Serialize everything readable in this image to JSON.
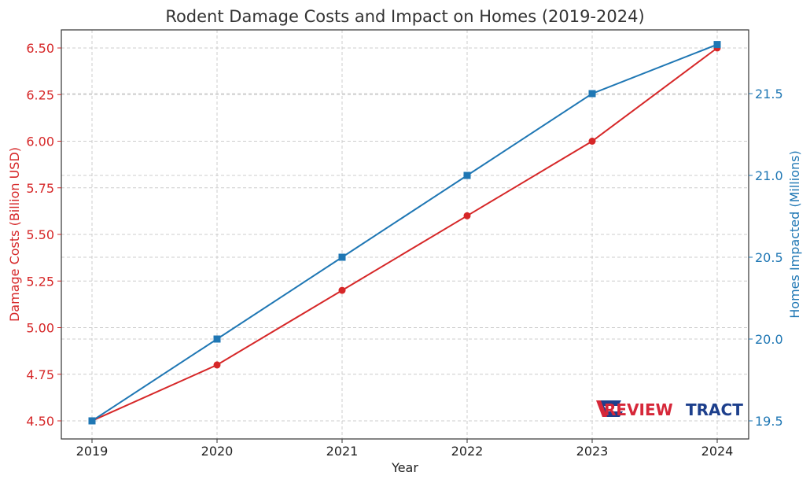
{
  "chart_data": {
    "type": "line",
    "title": "Rodent Damage Costs and Impact on Homes (2019-2024)",
    "xlabel": "Year",
    "categories": [
      "2019",
      "2020",
      "2021",
      "2022",
      "2023",
      "2024"
    ],
    "y_left": {
      "label": "Damage Costs (Billion USD)",
      "range": [
        4.5,
        6.5
      ],
      "ticks": [
        "4.50",
        "4.75",
        "5.00",
        "5.25",
        "5.50",
        "5.75",
        "6.00",
        "6.25",
        "6.50"
      ],
      "color": "#d62728"
    },
    "y_right": {
      "label": "Homes Impacted (Millions)",
      "range": [
        19.5,
        21.8
      ],
      "ticks": [
        "19.5",
        "20.0",
        "20.5",
        "21.0",
        "21.5"
      ],
      "color": "#1f77b4"
    },
    "series": [
      {
        "axis": "left",
        "color": "#d62728",
        "marker": "circle",
        "values": [
          4.5,
          4.8,
          5.2,
          5.6,
          6.0,
          6.5
        ]
      },
      {
        "axis": "right",
        "color": "#1f77b4",
        "marker": "square",
        "values": [
          19.5,
          20.0,
          20.5,
          21.0,
          21.5,
          21.8
        ]
      }
    ],
    "grid": true
  },
  "watermark": {
    "part1": "REVIEW",
    "part2": "TRACT"
  }
}
